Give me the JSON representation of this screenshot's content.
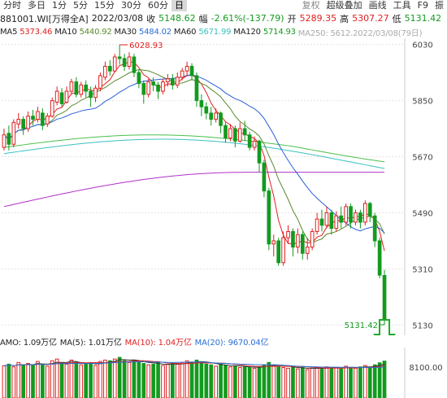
{
  "toolbar": {
    "items": [
      "分时",
      "多日",
      "1分",
      "5分",
      "15分",
      "30分",
      "60分",
      "日"
    ],
    "right": [
      "复权",
      "超级叠加",
      "画线",
      "工具",
      "F9",
      "振"
    ]
  },
  "info": {
    "code": "881001.WI[万得全A]",
    "date": "2022/03/08",
    "close_label": "收",
    "close": "5148.62",
    "change_label": "幅",
    "change": "-2.61%(-137.79)",
    "open_label": "开",
    "open": "5289.35",
    "high_label": "高",
    "high": "5307.27",
    "low_label": "低",
    "low": "5131.42"
  },
  "ma": {
    "ma5_label": "MA5",
    "ma5": "5373.46",
    "ma10_label": "MA10",
    "ma10": "5440.92",
    "ma30_label": "MA30",
    "ma30": "5484.02",
    "ma60_label": "MA60",
    "ma60": "5671.99",
    "ma120_label": "MA120",
    "ma120": "5714.93",
    "overlay": "MA250: 5612.2022/03/08(79日)"
  },
  "amo": {
    "label": "AMO: 1.09万亿",
    "ma5": "MA(5): 1.01万亿",
    "ma10": "MA(10): 1.04万亿",
    "ma20": "MA(20): 9670.04亿"
  },
  "colors": {
    "up": "#e02020",
    "down": "#139a1f",
    "ma5": "#e02020",
    "ma10": "#5a8a2a",
    "ma30": "#2a5fd6",
    "ma60": "#3cc0c0",
    "ma120": "#4cbf4c",
    "ma250": "#b030c8"
  },
  "chart_data": {
    "type": "candlestick",
    "y_ticks": [
      "6030",
      "5850",
      "5670",
      "5490",
      "5310",
      "5130"
    ],
    "ylim": [
      5110,
      6050
    ],
    "high_marker": "6028.93",
    "low_marker": "5131.42",
    "candles": [
      [
        5700,
        5740,
        5690,
        5760
      ],
      [
        5745,
        5710,
        5690,
        5770
      ],
      [
        5710,
        5780,
        5700,
        5790
      ],
      [
        5775,
        5790,
        5760,
        5810
      ],
      [
        5790,
        5760,
        5740,
        5800
      ],
      [
        5760,
        5800,
        5750,
        5815
      ],
      [
        5800,
        5790,
        5770,
        5820
      ],
      [
        5790,
        5815,
        5780,
        5830
      ],
      [
        5810,
        5770,
        5755,
        5825
      ],
      [
        5775,
        5800,
        5765,
        5810
      ],
      [
        5800,
        5850,
        5795,
        5860
      ],
      [
        5845,
        5880,
        5835,
        5895
      ],
      [
        5875,
        5840,
        5830,
        5890
      ],
      [
        5845,
        5880,
        5840,
        5895
      ],
      [
        5880,
        5910,
        5870,
        5920
      ],
      [
        5910,
        5870,
        5860,
        5925
      ],
      [
        5870,
        5900,
        5860,
        5910
      ],
      [
        5900,
        5880,
        5860,
        5915
      ],
      [
        5880,
        5860,
        5830,
        5895
      ],
      [
        5860,
        5890,
        5845,
        5900
      ],
      [
        5890,
        5930,
        5880,
        5940
      ],
      [
        5925,
        5960,
        5915,
        5975
      ],
      [
        5960,
        5945,
        5930,
        5980
      ],
      [
        5945,
        5990,
        5940,
        6000
      ],
      [
        5990,
        5985,
        5965,
        6029
      ],
      [
        5985,
        5960,
        5945,
        6000
      ],
      [
        5960,
        5990,
        5950,
        6005
      ],
      [
        5990,
        5940,
        5925,
        6000
      ],
      [
        5940,
        5905,
        5890,
        5950
      ],
      [
        5905,
        5870,
        5840,
        5915
      ],
      [
        5870,
        5910,
        5860,
        5920
      ],
      [
        5910,
        5900,
        5880,
        5925
      ],
      [
        5900,
        5880,
        5855,
        5910
      ],
      [
        5880,
        5910,
        5870,
        5920
      ],
      [
        5910,
        5920,
        5895,
        5935
      ],
      [
        5920,
        5900,
        5885,
        5935
      ],
      [
        5900,
        5925,
        5890,
        5940
      ],
      [
        5925,
        5945,
        5915,
        5955
      ],
      [
        5945,
        5960,
        5930,
        5975
      ],
      [
        5960,
        5930,
        5915,
        5970
      ],
      [
        5930,
        5850,
        5830,
        5940
      ],
      [
        5850,
        5830,
        5800,
        5870
      ],
      [
        5830,
        5810,
        5790,
        5845
      ],
      [
        5810,
        5790,
        5770,
        5830
      ],
      [
        5790,
        5810,
        5780,
        5825
      ],
      [
        5810,
        5770,
        5745,
        5815
      ],
      [
        5770,
        5730,
        5715,
        5780
      ],
      [
        5730,
        5760,
        5720,
        5775
      ],
      [
        5760,
        5720,
        5700,
        5770
      ],
      [
        5720,
        5760,
        5715,
        5780
      ],
      [
        5760,
        5740,
        5720,
        5785
      ],
      [
        5740,
        5700,
        5690,
        5750
      ],
      [
        5700,
        5720,
        5690,
        5735
      ],
      [
        5720,
        5650,
        5620,
        5725
      ],
      [
        5650,
        5560,
        5540,
        5660
      ],
      [
        5560,
        5390,
        5370,
        5570
      ],
      [
        5390,
        5400,
        5350,
        5420
      ],
      [
        5400,
        5330,
        5320,
        5410
      ],
      [
        5330,
        5410,
        5320,
        5430
      ],
      [
        5410,
        5430,
        5390,
        5450
      ],
      [
        5430,
        5380,
        5350,
        5440
      ],
      [
        5380,
        5420,
        5360,
        5440
      ],
      [
        5420,
        5360,
        5340,
        5430
      ],
      [
        5360,
        5380,
        5340,
        5410
      ],
      [
        5380,
        5430,
        5370,
        5440
      ],
      [
        5430,
        5470,
        5420,
        5490
      ],
      [
        5470,
        5450,
        5430,
        5500
      ],
      [
        5450,
        5490,
        5440,
        5510
      ],
      [
        5490,
        5440,
        5420,
        5500
      ],
      [
        5440,
        5480,
        5430,
        5495
      ],
      [
        5480,
        5460,
        5440,
        5510
      ],
      [
        5460,
        5510,
        5450,
        5520
      ],
      [
        5510,
        5460,
        5440,
        5520
      ],
      [
        5460,
        5490,
        5450,
        5500
      ],
      [
        5490,
        5460,
        5440,
        5500
      ],
      [
        5460,
        5520,
        5450,
        5530
      ],
      [
        5520,
        5480,
        5460,
        5525
      ],
      [
        5480,
        5400,
        5380,
        5490
      ],
      [
        5400,
        5290,
        5280,
        5410
      ],
      [
        5289,
        5149,
        5131,
        5307
      ]
    ],
    "volumes": [
      0.95,
      1.0,
      0.92,
      1.05,
      0.98,
      1.02,
      0.96,
      1.08,
      1.0,
      0.94,
      1.1,
      1.15,
      1.05,
      1.0,
      1.12,
      1.06,
      0.98,
      1.0,
      1.04,
      0.96,
      1.08,
      1.12,
      1.1,
      1.15,
      1.2,
      1.1,
      1.05,
      1.12,
      1.08,
      1.02,
      0.98,
      1.0,
      1.05,
      0.96,
      0.99,
      1.02,
      1.0,
      1.05,
      1.1,
      1.06,
      1.12,
      1.05,
      1.0,
      0.98,
      0.94,
      1.0,
      0.96,
      0.92,
      0.95,
      0.9,
      0.93,
      0.9,
      0.88,
      0.92,
      0.98,
      1.05,
      0.96,
      0.94,
      0.9,
      0.88,
      0.92,
      0.86,
      0.9,
      0.84,
      0.88,
      0.9,
      0.86,
      0.92,
      0.88,
      0.9,
      0.86,
      0.94,
      0.9,
      0.88,
      0.92,
      0.96,
      0.92,
      0.98,
      1.04,
      1.09
    ],
    "vol_tick": "8100.00"
  }
}
